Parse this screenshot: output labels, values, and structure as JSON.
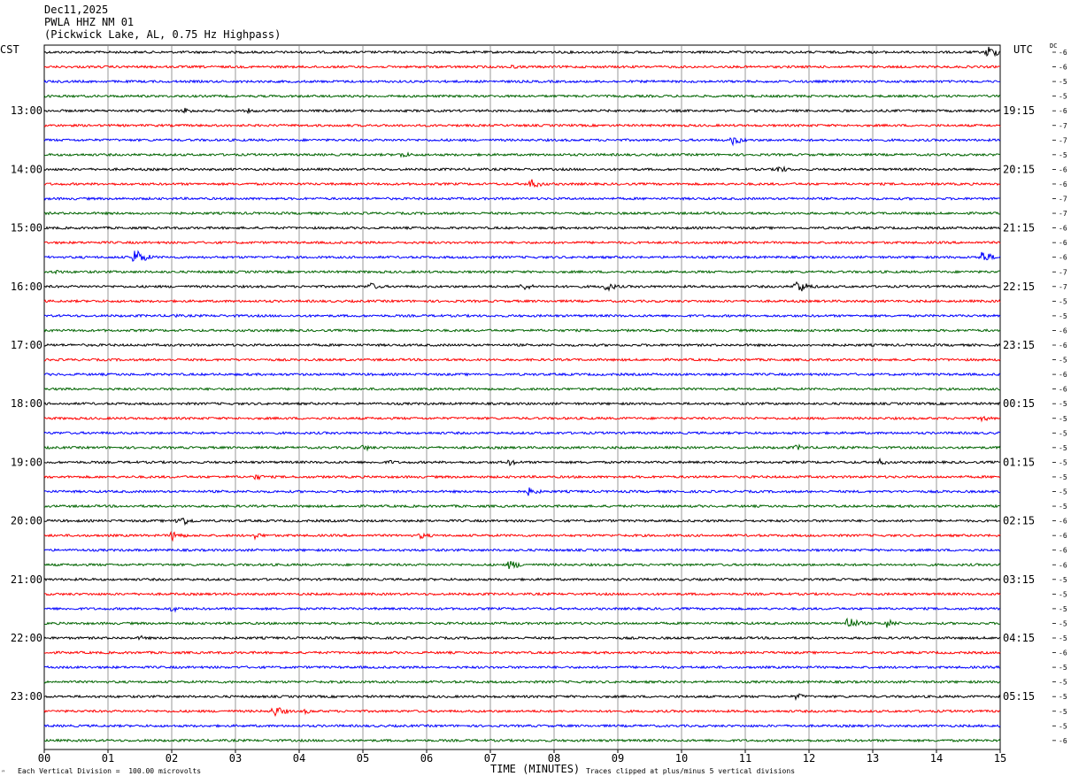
{
  "header": {
    "date": "Dec11,2025",
    "station": "PWLA HHZ NM 01",
    "location": "(Pickwick Lake, AL, 0.75 Hz Highpass)"
  },
  "left_axis_label": "CST",
  "right_axis_label": "UTC",
  "dc_label": "DC",
  "footer": {
    "scale": "Each Vertical Division =  100.00 microvolts",
    "clip": "Traces clipped at plus/minus 5 vertical divisions",
    "x_title": "TIME (MINUTES)",
    "corner_mark": "ʺ"
  },
  "colors": {
    "trace_cycle": [
      "#000000",
      "#ff0000",
      "#0000ff",
      "#006400"
    ],
    "grid": "#808080"
  },
  "chart_data": {
    "type": "line",
    "title": "PWLA HHZ NM 01 (Pickwick Lake, AL, 0.75 Hz Highpass) Dec11,2025",
    "xlabel": "TIME (MINUTES)",
    "xlim": [
      0,
      15
    ],
    "x_ticks": [
      "00",
      "01",
      "02",
      "03",
      "04",
      "05",
      "06",
      "07",
      "08",
      "09",
      "10",
      "11",
      "12",
      "13",
      "14",
      "15"
    ],
    "left_hour_labels": [
      "13:00",
      "14:00",
      "15:00",
      "16:00",
      "17:00",
      "18:00",
      "19:00",
      "20:00",
      "21:00",
      "22:00",
      "23:00"
    ],
    "right_hour_labels": [
      "19:15",
      "20:15",
      "21:15",
      "22:15",
      "23:15",
      "00:15",
      "01:15",
      "02:15",
      "03:15",
      "04:15",
      "05:15"
    ],
    "hour_label_first_row": 4,
    "rows_per_hour": 4,
    "row_count": 48,
    "dc_offsets": [
      "-6",
      "-6",
      "-5",
      "-5",
      "-6",
      "-7",
      "-7",
      "-5",
      "-6",
      "-6",
      "-7",
      "-7",
      "-6",
      "-6",
      "-6",
      "-7",
      "-7",
      "-5",
      "-5",
      "-6",
      "-6",
      "-5",
      "-6",
      "-6",
      "-5",
      "-5",
      "-5",
      "-5",
      "-5",
      "-5",
      "-5",
      "-5",
      "-6",
      "-6",
      "-6",
      "-6",
      "-5",
      "-5",
      "-5",
      "-5",
      "-5",
      "-6",
      "-5",
      "-5",
      "-5",
      "-5",
      "-5",
      "-6"
    ],
    "events": [
      {
        "row": 0,
        "minute": 14.8,
        "amp": 8
      },
      {
        "row": 1,
        "minute": 7.3,
        "amp": 3
      },
      {
        "row": 4,
        "minute": 2.2,
        "amp": 4
      },
      {
        "row": 4,
        "minute": 3.2,
        "amp": 3
      },
      {
        "row": 6,
        "minute": 10.8,
        "amp": 6
      },
      {
        "row": 7,
        "minute": 5.6,
        "amp": 4
      },
      {
        "row": 8,
        "minute": 11.5,
        "amp": 5
      },
      {
        "row": 9,
        "minute": 7.6,
        "amp": 7
      },
      {
        "row": 14,
        "minute": 1.4,
        "amp": 11
      },
      {
        "row": 14,
        "minute": 14.7,
        "amp": 8
      },
      {
        "row": 15,
        "minute": 0.2,
        "amp": 3
      },
      {
        "row": 16,
        "minute": 5.1,
        "amp": 5
      },
      {
        "row": 16,
        "minute": 7.5,
        "amp": 5
      },
      {
        "row": 16,
        "minute": 8.8,
        "amp": 6
      },
      {
        "row": 16,
        "minute": 11.8,
        "amp": 9
      },
      {
        "row": 18,
        "minute": 2.0,
        "amp": 3
      },
      {
        "row": 25,
        "minute": 14.7,
        "amp": 4
      },
      {
        "row": 27,
        "minute": 5.0,
        "amp": 4
      },
      {
        "row": 27,
        "minute": 11.8,
        "amp": 4
      },
      {
        "row": 28,
        "minute": 5.4,
        "amp": 3
      },
      {
        "row": 28,
        "minute": 7.3,
        "amp": 4
      },
      {
        "row": 28,
        "minute": 13.1,
        "amp": 4
      },
      {
        "row": 29,
        "minute": 3.3,
        "amp": 4
      },
      {
        "row": 30,
        "minute": 7.6,
        "amp": 5
      },
      {
        "row": 32,
        "minute": 2.1,
        "amp": 8
      },
      {
        "row": 33,
        "minute": 2.0,
        "amp": 6
      },
      {
        "row": 33,
        "minute": 3.3,
        "amp": 4
      },
      {
        "row": 33,
        "minute": 5.9,
        "amp": 4
      },
      {
        "row": 35,
        "minute": 7.3,
        "amp": 6
      },
      {
        "row": 38,
        "minute": 2.0,
        "amp": 4
      },
      {
        "row": 39,
        "minute": 12.6,
        "amp": 8
      },
      {
        "row": 39,
        "minute": 13.2,
        "amp": 6
      },
      {
        "row": 40,
        "minute": 1.5,
        "amp": 3
      },
      {
        "row": 44,
        "minute": 11.8,
        "amp": 4
      },
      {
        "row": 45,
        "minute": 3.6,
        "amp": 7
      },
      {
        "row": 45,
        "minute": 4.1,
        "amp": 3
      }
    ]
  }
}
